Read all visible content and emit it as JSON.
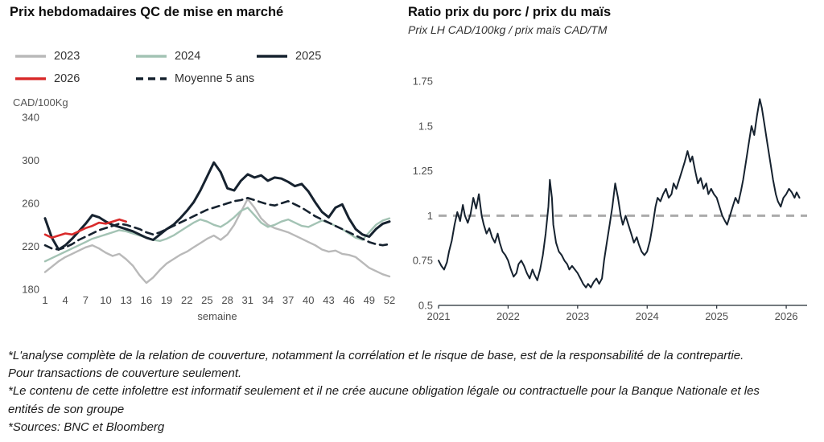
{
  "chart_data": [
    {
      "type": "line",
      "title": "Prix hebdomadaires QC de mise en marché",
      "ylabel": "CAD/100Kg",
      "xlabel": "semaine",
      "ylim": [
        180,
        340
      ],
      "yticks": [
        180,
        220,
        260,
        300,
        340
      ],
      "xlim": [
        1,
        52
      ],
      "xticks": [
        1,
        4,
        7,
        10,
        13,
        16,
        19,
        22,
        25,
        28,
        31,
        34,
        37,
        40,
        43,
        46,
        49,
        52
      ],
      "legend_position": "top",
      "grid": false,
      "series": [
        {
          "name": "2023",
          "color": "#b9b9b9",
          "dash": null,
          "width": 2.4,
          "values": [
            196,
            201,
            206,
            210,
            213,
            216,
            219,
            221,
            218,
            214,
            211,
            213,
            208,
            202,
            193,
            186,
            191,
            198,
            204,
            208,
            212,
            215,
            219,
            223,
            227,
            230,
            226,
            231,
            240,
            252,
            264,
            256,
            246,
            240,
            237,
            235,
            233,
            230,
            227,
            224,
            221,
            217,
            215,
            216,
            213,
            212,
            210,
            205,
            200,
            197,
            194,
            192
          ]
        },
        {
          "name": "2024",
          "color": "#a3c3b4",
          "dash": null,
          "width": 2.4,
          "values": [
            206,
            209,
            212,
            215,
            218,
            221,
            224,
            227,
            229,
            231,
            233,
            235,
            234,
            232,
            230,
            228,
            226,
            225,
            227,
            230,
            234,
            238,
            242,
            245,
            243,
            240,
            238,
            242,
            247,
            253,
            256,
            249,
            242,
            238,
            240,
            243,
            245,
            242,
            239,
            238,
            241,
            244,
            242,
            239,
            236,
            232,
            228,
            226,
            233,
            240,
            244,
            246
          ]
        },
        {
          "name": "2025",
          "color": "#16222f",
          "dash": null,
          "width": 3,
          "values": [
            246,
            228,
            217,
            221,
            227,
            234,
            241,
            249,
            247,
            243,
            240,
            238,
            236,
            234,
            231,
            228,
            226,
            231,
            236,
            240,
            246,
            253,
            261,
            272,
            285,
            298,
            289,
            274,
            272,
            281,
            287,
            284,
            286,
            281,
            284,
            283,
            280,
            276,
            278,
            271,
            261,
            252,
            247,
            256,
            259,
            246,
            236,
            231,
            229,
            236,
            241,
            243
          ]
        },
        {
          "name": "2026",
          "color": "#d92b2b",
          "dash": null,
          "width": 2.6,
          "values": [
            231,
            228,
            230,
            232,
            231,
            234,
            237,
            239,
            242,
            241,
            243,
            245,
            243
          ]
        },
        {
          "name": "Moyenne 5 ans",
          "color": "#16222f",
          "dash": "9,6",
          "width": 2.6,
          "values": [
            221,
            218,
            217,
            219,
            222,
            226,
            229,
            232,
            235,
            237,
            239,
            241,
            240,
            238,
            236,
            233,
            231,
            233,
            236,
            239,
            242,
            245,
            248,
            251,
            254,
            256,
            258,
            260,
            262,
            263,
            265,
            263,
            261,
            259,
            258,
            260,
            262,
            259,
            256,
            252,
            248,
            245,
            242,
            239,
            236,
            233,
            230,
            227,
            224,
            222,
            221,
            222
          ]
        }
      ]
    },
    {
      "type": "line",
      "title": "Ratio prix du porc / prix du maïs",
      "subtitle": "Prix LH CAD/100kg / prix maïs CAD/TM",
      "ylim": [
        0.5,
        1.75
      ],
      "yticks": [
        0.5,
        0.75,
        1,
        1.25,
        1.5,
        1.75
      ],
      "xlim": [
        2021,
        2026.3
      ],
      "xticks": [
        2021,
        2022,
        2023,
        2024,
        2025,
        2026
      ],
      "grid": false,
      "reference_line": {
        "y": 1,
        "color": "#ababab",
        "dash": "10,8"
      },
      "series": [
        {
          "name": "ratio porc/maïs",
          "color": "#16222f",
          "dash": null,
          "width": 2,
          "points": [
            [
              2021.0,
              0.75
            ],
            [
              2021.04,
              0.72
            ],
            [
              2021.08,
              0.7
            ],
            [
              2021.12,
              0.74
            ],
            [
              2021.15,
              0.8
            ],
            [
              2021.19,
              0.86
            ],
            [
              2021.23,
              0.95
            ],
            [
              2021.27,
              1.02
            ],
            [
              2021.31,
              0.97
            ],
            [
              2021.35,
              1.06
            ],
            [
              2021.38,
              1.0
            ],
            [
              2021.42,
              0.96
            ],
            [
              2021.46,
              1.01
            ],
            [
              2021.5,
              1.1
            ],
            [
              2021.54,
              1.04
            ],
            [
              2021.58,
              1.12
            ],
            [
              2021.62,
              1.0
            ],
            [
              2021.65,
              0.95
            ],
            [
              2021.69,
              0.9
            ],
            [
              2021.73,
              0.93
            ],
            [
              2021.77,
              0.88
            ],
            [
              2021.81,
              0.85
            ],
            [
              2021.85,
              0.9
            ],
            [
              2021.88,
              0.85
            ],
            [
              2021.92,
              0.8
            ],
            [
              2021.96,
              0.78
            ],
            [
              2022.0,
              0.75
            ],
            [
              2022.04,
              0.7
            ],
            [
              2022.08,
              0.66
            ],
            [
              2022.12,
              0.68
            ],
            [
              2022.15,
              0.73
            ],
            [
              2022.19,
              0.75
            ],
            [
              2022.23,
              0.72
            ],
            [
              2022.27,
              0.68
            ],
            [
              2022.31,
              0.65
            ],
            [
              2022.35,
              0.7
            ],
            [
              2022.38,
              0.67
            ],
            [
              2022.42,
              0.64
            ],
            [
              2022.46,
              0.7
            ],
            [
              2022.5,
              0.78
            ],
            [
              2022.54,
              0.9
            ],
            [
              2022.58,
              1.05
            ],
            [
              2022.6,
              1.2
            ],
            [
              2022.63,
              1.1
            ],
            [
              2022.65,
              0.95
            ],
            [
              2022.69,
              0.85
            ],
            [
              2022.73,
              0.8
            ],
            [
              2022.77,
              0.78
            ],
            [
              2022.81,
              0.75
            ],
            [
              2022.85,
              0.73
            ],
            [
              2022.88,
              0.7
            ],
            [
              2022.92,
              0.72
            ],
            [
              2022.96,
              0.7
            ],
            [
              2023.0,
              0.68
            ],
            [
              2023.04,
              0.65
            ],
            [
              2023.08,
              0.62
            ],
            [
              2023.12,
              0.6
            ],
            [
              2023.15,
              0.62
            ],
            [
              2023.19,
              0.6
            ],
            [
              2023.23,
              0.63
            ],
            [
              2023.27,
              0.65
            ],
            [
              2023.31,
              0.62
            ],
            [
              2023.35,
              0.65
            ],
            [
              2023.38,
              0.75
            ],
            [
              2023.42,
              0.85
            ],
            [
              2023.46,
              0.95
            ],
            [
              2023.5,
              1.05
            ],
            [
              2023.54,
              1.18
            ],
            [
              2023.58,
              1.1
            ],
            [
              2023.62,
              1.0
            ],
            [
              2023.65,
              0.95
            ],
            [
              2023.69,
              1.0
            ],
            [
              2023.73,
              0.95
            ],
            [
              2023.77,
              0.9
            ],
            [
              2023.81,
              0.85
            ],
            [
              2023.85,
              0.88
            ],
            [
              2023.88,
              0.84
            ],
            [
              2023.92,
              0.8
            ],
            [
              2023.96,
              0.78
            ],
            [
              2024.0,
              0.8
            ],
            [
              2024.04,
              0.86
            ],
            [
              2024.08,
              0.95
            ],
            [
              2024.12,
              1.05
            ],
            [
              2024.15,
              1.1
            ],
            [
              2024.19,
              1.08
            ],
            [
              2024.23,
              1.12
            ],
            [
              2024.27,
              1.15
            ],
            [
              2024.31,
              1.1
            ],
            [
              2024.35,
              1.12
            ],
            [
              2024.38,
              1.18
            ],
            [
              2024.42,
              1.15
            ],
            [
              2024.46,
              1.2
            ],
            [
              2024.5,
              1.25
            ],
            [
              2024.54,
              1.3
            ],
            [
              2024.58,
              1.36
            ],
            [
              2024.62,
              1.3
            ],
            [
              2024.65,
              1.33
            ],
            [
              2024.69,
              1.25
            ],
            [
              2024.73,
              1.18
            ],
            [
              2024.77,
              1.21
            ],
            [
              2024.81,
              1.15
            ],
            [
              2024.85,
              1.18
            ],
            [
              2024.88,
              1.12
            ],
            [
              2024.92,
              1.15
            ],
            [
              2024.96,
              1.12
            ],
            [
              2025.0,
              1.1
            ],
            [
              2025.04,
              1.05
            ],
            [
              2025.08,
              1.0
            ],
            [
              2025.12,
              0.97
            ],
            [
              2025.15,
              0.95
            ],
            [
              2025.19,
              1.0
            ],
            [
              2025.23,
              1.05
            ],
            [
              2025.27,
              1.1
            ],
            [
              2025.31,
              1.07
            ],
            [
              2025.35,
              1.14
            ],
            [
              2025.38,
              1.2
            ],
            [
              2025.42,
              1.3
            ],
            [
              2025.46,
              1.4
            ],
            [
              2025.5,
              1.5
            ],
            [
              2025.54,
              1.45
            ],
            [
              2025.58,
              1.56
            ],
            [
              2025.62,
              1.65
            ],
            [
              2025.65,
              1.6
            ],
            [
              2025.69,
              1.5
            ],
            [
              2025.73,
              1.4
            ],
            [
              2025.77,
              1.3
            ],
            [
              2025.81,
              1.2
            ],
            [
              2025.85,
              1.12
            ],
            [
              2025.88,
              1.08
            ],
            [
              2025.92,
              1.05
            ],
            [
              2025.96,
              1.1
            ],
            [
              2026.0,
              1.12
            ],
            [
              2026.04,
              1.15
            ],
            [
              2026.08,
              1.13
            ],
            [
              2026.12,
              1.1
            ],
            [
              2026.15,
              1.13
            ],
            [
              2026.19,
              1.1
            ]
          ]
        }
      ]
    }
  ],
  "footnotes": [
    "*L'analyse complète de la relation de couverture, notamment la corrélation et le risque de base, est de la responsabilité de la contrepartie. Pour transactions de couverture seulement.",
    "*Le contenu de cette infolettre est informatif seulement et il ne crée aucune obligation légale ou contractuelle pour la Banque Nationale et les entités de son groupe",
    "*Sources: BNC et Bloomberg"
  ]
}
